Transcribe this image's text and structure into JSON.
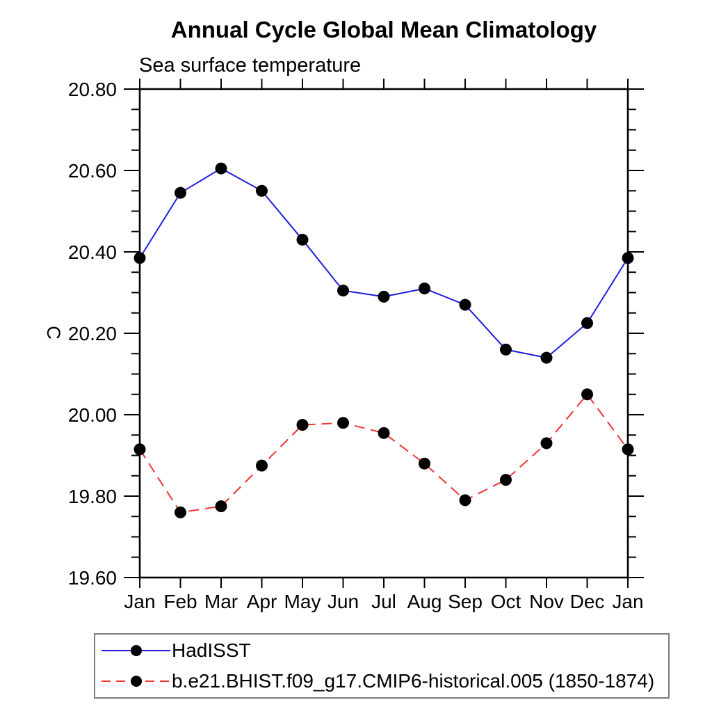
{
  "chart_data": {
    "type": "line",
    "title": "Annual Cycle Global Mean Climatology",
    "subtitle": "Sea surface temperature",
    "ylabel": "C",
    "x_categories": [
      "Jan",
      "Feb",
      "Mar",
      "Apr",
      "May",
      "Jun",
      "Jul",
      "Aug",
      "Sep",
      "Oct",
      "Nov",
      "Dec",
      "Jan"
    ],
    "ylim": [
      19.6,
      20.8
    ],
    "ytick_interval": 0.2,
    "ytick_minor_interval": 0.05,
    "ytick_labels": [
      "19.60",
      "19.80",
      "20.00",
      "20.20",
      "20.40",
      "20.60",
      "20.80"
    ],
    "grid": false,
    "legend_position": "bottom-left-box",
    "axis_color": "#000000",
    "marker": "filled-circle",
    "marker_color": "#000000",
    "series": [
      {
        "name": "HadISST",
        "color": "#1c1ce0",
        "style": "solid",
        "values": [
          20.385,
          20.545,
          20.605,
          20.55,
          20.43,
          20.305,
          20.29,
          20.31,
          20.27,
          20.16,
          20.14,
          20.225,
          20.385
        ]
      },
      {
        "name": "b.e21.BHIST.f09_g17.CMIP6-historical.005 (1850-1874)",
        "color": "#ee3333",
        "style": "dashed",
        "values": [
          19.915,
          19.76,
          19.775,
          19.875,
          19.975,
          19.98,
          19.955,
          19.88,
          19.79,
          19.84,
          19.93,
          20.05,
          19.915
        ]
      }
    ]
  }
}
